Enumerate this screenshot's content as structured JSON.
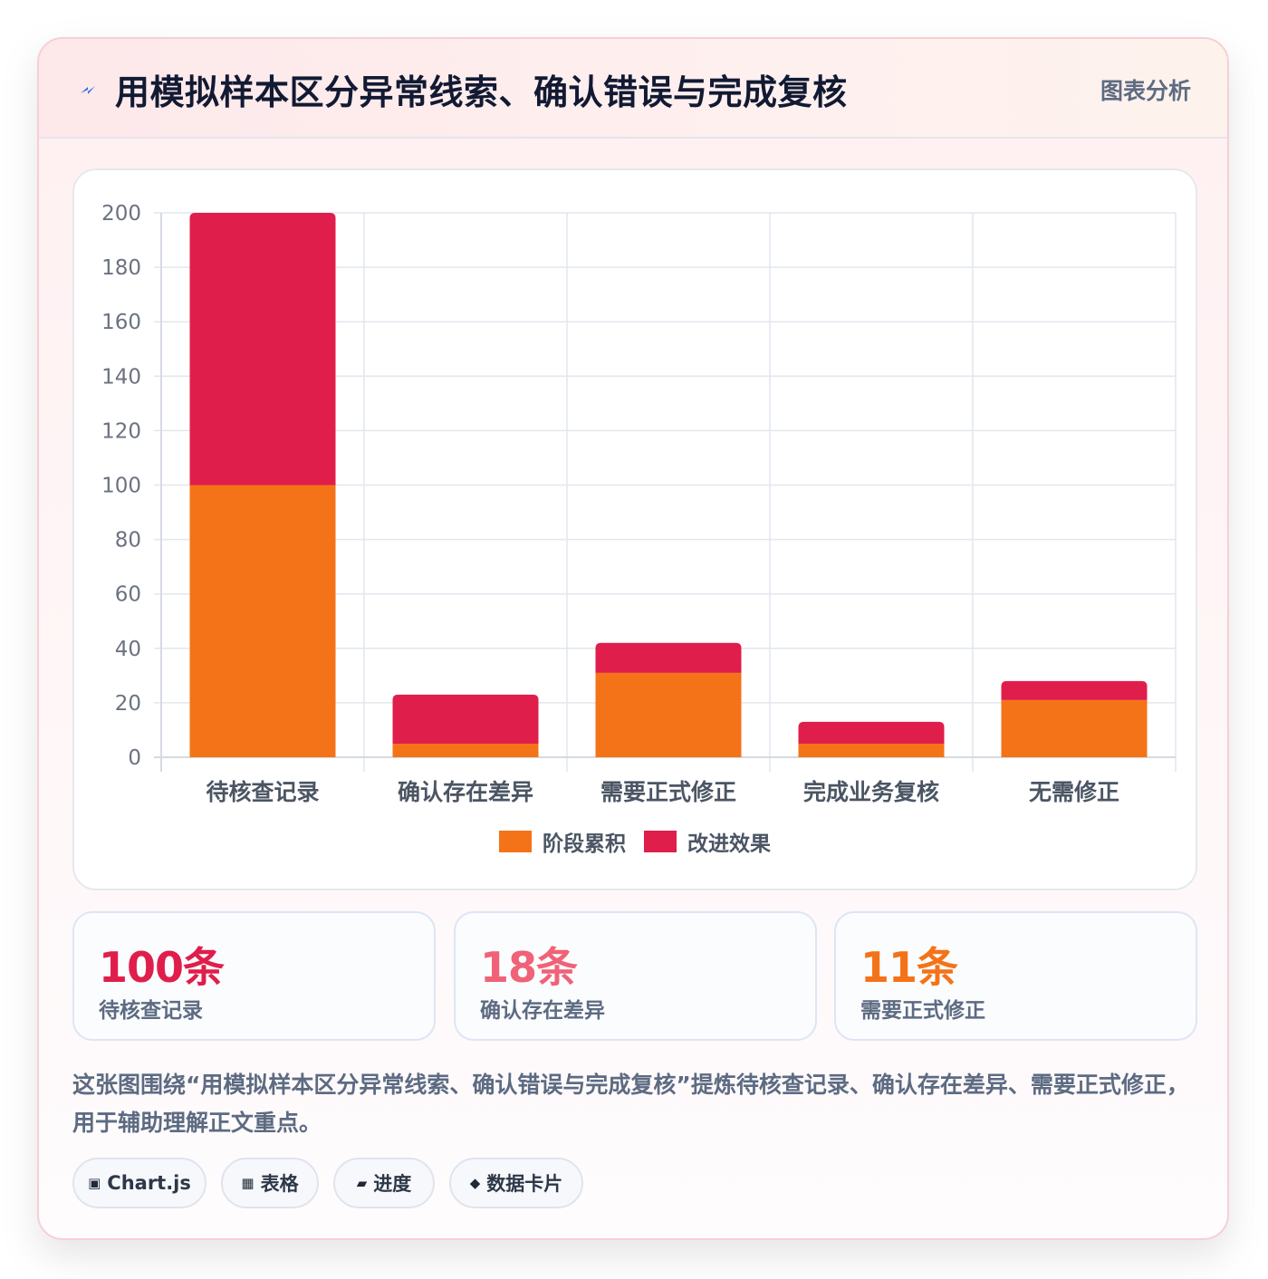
{
  "header": {
    "title": "用模拟样本区分异常线索、确认错误与完成复核",
    "tag": "图表分析",
    "icon": "lightning-bolt-icon"
  },
  "chart_data": {
    "type": "bar",
    "stacked": true,
    "categories": [
      "待核查记录",
      "确认存在差异",
      "需要正式修正",
      "完成业务复核",
      "无需修正"
    ],
    "series": [
      {
        "name": "阶段累积",
        "color": "#f47318",
        "values": [
          100,
          5,
          31,
          5,
          21
        ]
      },
      {
        "name": "改进效果",
        "color": "#e01e4b",
        "values": [
          100,
          18,
          11,
          8,
          7
        ]
      }
    ],
    "ylim": [
      0,
      200
    ],
    "yticks": [
      0,
      20,
      40,
      60,
      80,
      100,
      120,
      140,
      160,
      180,
      200
    ],
    "grid": true,
    "legend_position": "bottom"
  },
  "stats": [
    {
      "value": "100条",
      "label": "待核查记录",
      "color": "#e01e4b"
    },
    {
      "value": "18条",
      "label": "确认存在差异",
      "color": "#f06277"
    },
    {
      "value": "11条",
      "label": "需要正式修正",
      "color": "#f47318"
    }
  ],
  "description": "这张图围绕“用模拟样本区分异常线索、确认错误与完成复核”提炼待核查记录、确认存在差异、需要正式修正，用于辅助理解正文重点。",
  "chips": [
    {
      "icon": "▣",
      "label": "Chart.js"
    },
    {
      "icon": "▦",
      "label": "表格"
    },
    {
      "icon": "▰",
      "label": "进度"
    },
    {
      "icon": "◆",
      "label": "数据卡片"
    }
  ]
}
